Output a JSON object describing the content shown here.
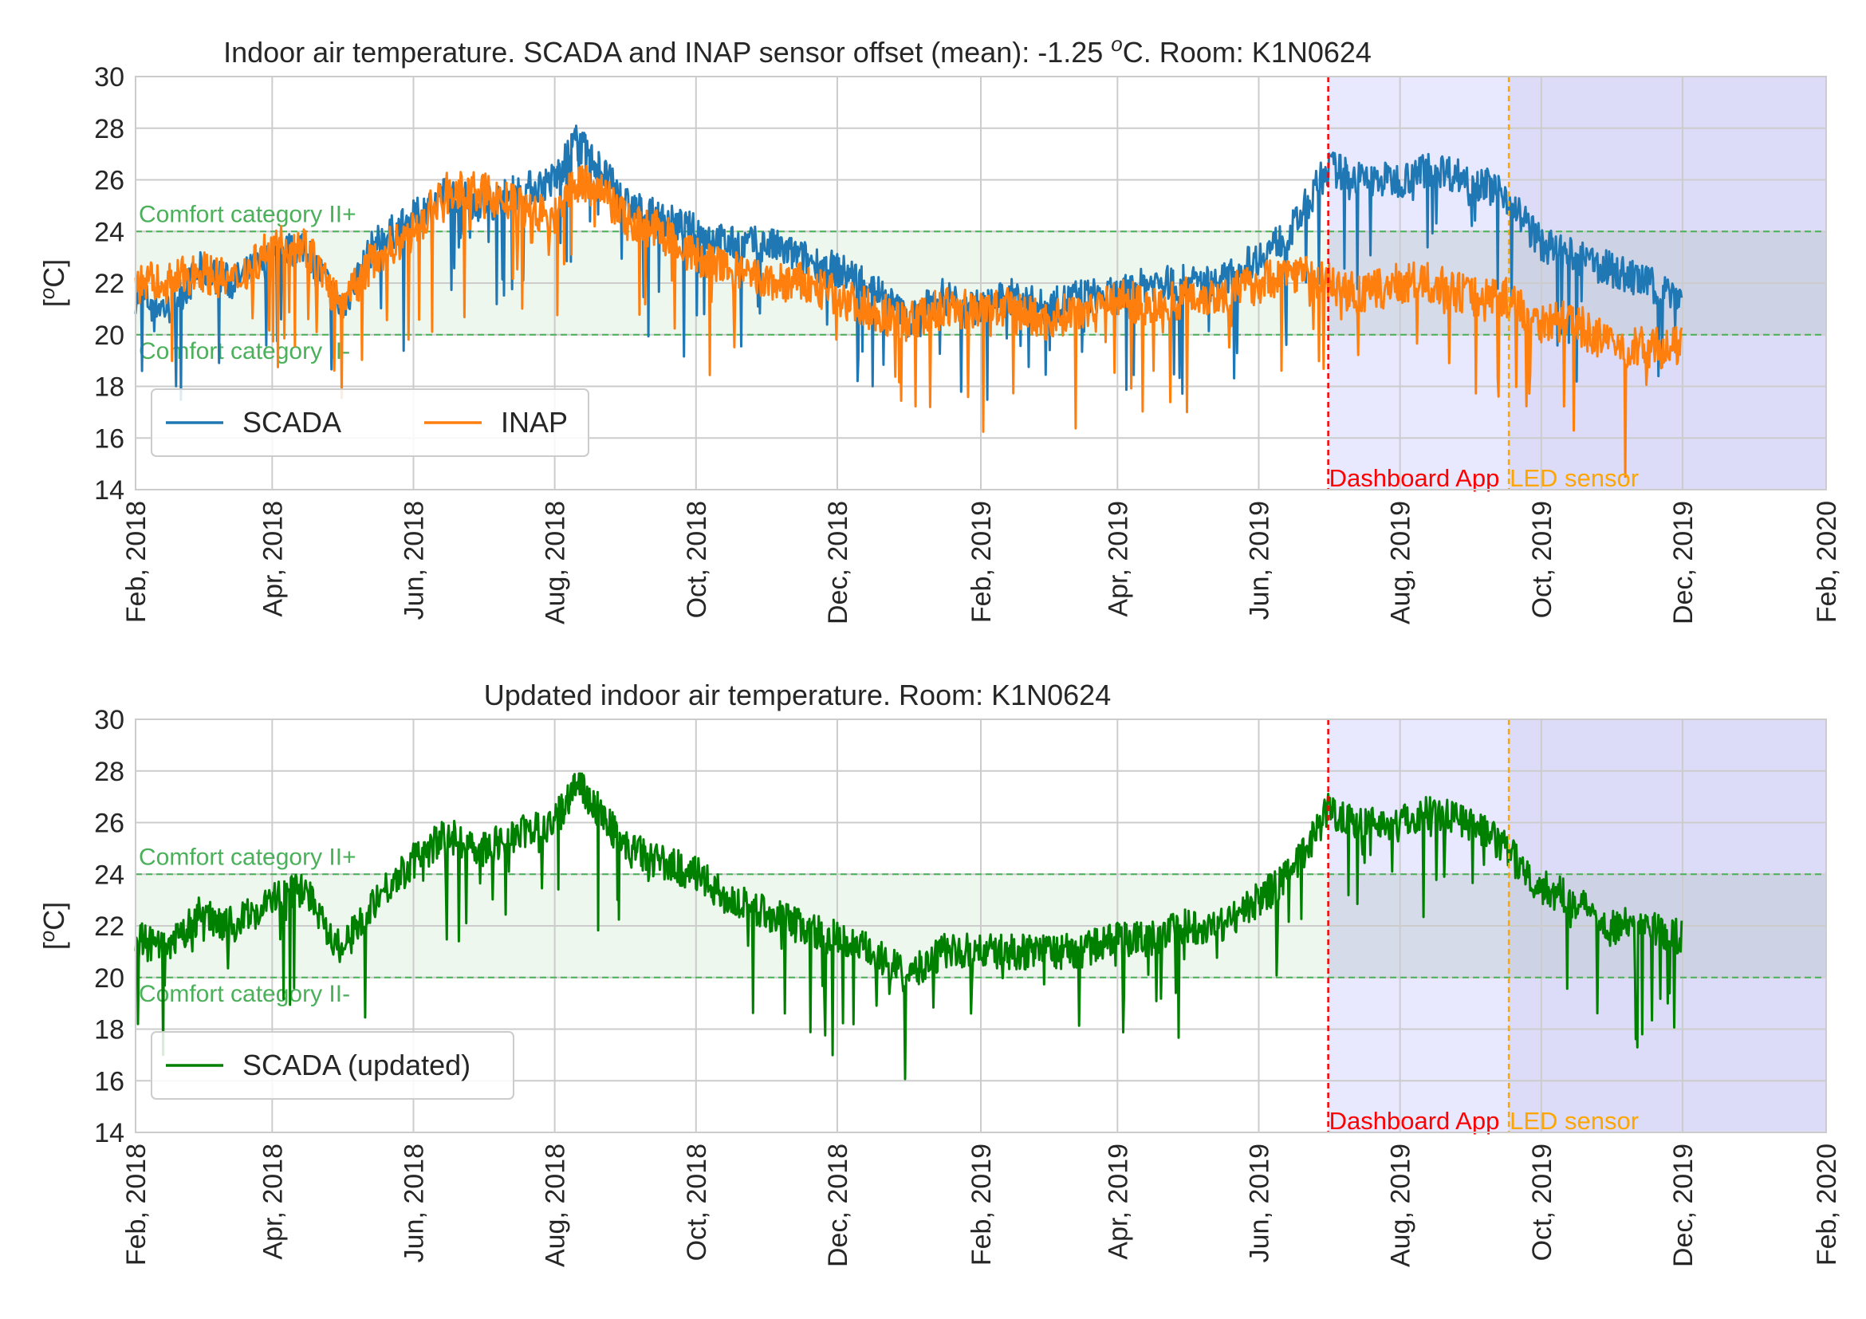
{
  "chart_data": [
    {
      "type": "line",
      "title": "Indoor air temperature. SCADA and INAP sensor offset (mean): -1.25 °C. Room: K1N0624",
      "title_parts": {
        "before": "Indoor air temperature. SCADA and INAP sensor offset (mean): -1.25 ",
        "sup": "o",
        "after": "C. Room: K1N0624"
      },
      "xlabel": "",
      "ylabel": "[oC]",
      "ylabel_parts": {
        "before": "[",
        "sup": "o",
        "after": "C]"
      },
      "xlim": [
        "2018-02-01",
        "2020-02-01"
      ],
      "ylim": [
        14,
        30
      ],
      "x_ticks": [
        "Feb, 2018",
        "Apr, 2018",
        "Jun, 2018",
        "Aug, 2018",
        "Oct, 2018",
        "Dec, 2018",
        "Feb, 2019",
        "Apr, 2019",
        "Jun, 2019",
        "Aug, 2019",
        "Oct, 2019",
        "Dec, 2019",
        "Feb, 2020"
      ],
      "y_ticks": [
        "14",
        "16",
        "18",
        "20",
        "22",
        "24",
        "26",
        "28",
        "30"
      ],
      "grid": true,
      "legend_position": "lower-left",
      "legend_columns": 2,
      "comfort_band": {
        "upper": 24,
        "lower": 20,
        "upper_label": "Comfort category II+",
        "lower_label": "Comfort category II-",
        "color": "#4bb05a"
      },
      "events": [
        {
          "date": "2019-07-01",
          "label": "Dashboard App",
          "color": "#ff0000"
        },
        {
          "date": "2019-09-17",
          "label": "LED sensor",
          "color": "#ffa500"
        }
      ],
      "shaded_periods": [
        {
          "start": "2019-07-01",
          "end": "2020-02-01",
          "color": "#e8e8ff"
        },
        {
          "start": "2019-09-17",
          "end": "2020-02-01",
          "color": "#dcdcf8"
        }
      ],
      "series": [
        {
          "name": "SCADA",
          "color": "#1f77b4",
          "x": [
            "2018-02-01",
            "2018-02-15",
            "2018-03-01",
            "2018-03-15",
            "2018-04-01",
            "2018-04-15",
            "2018-05-01",
            "2018-05-15",
            "2018-06-01",
            "2018-06-15",
            "2018-07-01",
            "2018-07-15",
            "2018-08-01",
            "2018-08-10",
            "2018-08-20",
            "2018-09-01",
            "2018-09-15",
            "2018-10-01",
            "2018-10-15",
            "2018-11-01",
            "2018-11-15",
            "2018-12-01",
            "2018-12-15",
            "2019-01-01",
            "2019-01-15",
            "2019-02-01",
            "2019-02-15",
            "2019-03-01",
            "2019-03-15",
            "2019-04-01",
            "2019-04-15",
            "2019-05-01",
            "2019-05-15",
            "2019-06-01",
            "2019-06-15",
            "2019-07-01",
            "2019-07-15",
            "2019-08-01",
            "2019-08-15",
            "2019-09-01",
            "2019-09-15",
            "2019-10-01",
            "2019-10-15",
            "2019-11-01",
            "2019-11-15",
            "2019-12-01"
          ],
          "values": [
            21.5,
            21.0,
            22.5,
            22.0,
            23.0,
            23.5,
            21.0,
            23.5,
            24.5,
            25.5,
            25.0,
            25.5,
            26.0,
            27.5,
            26.5,
            25.0,
            24.5,
            24.0,
            23.5,
            23.5,
            23.0,
            22.5,
            22.0,
            20.5,
            21.5,
            21.0,
            21.5,
            21.0,
            21.5,
            21.5,
            22.0,
            22.0,
            22.0,
            23.0,
            24.0,
            26.5,
            26.0,
            26.0,
            26.5,
            26.0,
            25.5,
            23.5,
            23.0,
            22.5,
            22.0,
            21.5
          ]
        },
        {
          "name": "INAP",
          "color": "#ff7f0e",
          "x": [
            "2018-02-01",
            "2018-02-15",
            "2018-03-01",
            "2018-03-15",
            "2018-04-01",
            "2018-04-15",
            "2018-05-01",
            "2018-05-15",
            "2018-06-01",
            "2018-06-15",
            "2018-07-01",
            "2018-07-15",
            "2018-08-01",
            "2018-08-10",
            "2018-08-20",
            "2018-09-01",
            "2018-09-15",
            "2018-10-01",
            "2018-10-15",
            "2018-11-01",
            "2018-11-15",
            "2018-12-01",
            "2018-12-15",
            "2019-01-01",
            "2019-01-15",
            "2019-02-01",
            "2019-02-15",
            "2019-03-01",
            "2019-03-15",
            "2019-04-01",
            "2019-04-15",
            "2019-05-01",
            "2019-05-15",
            "2019-06-01",
            "2019-06-15",
            "2019-07-01",
            "2019-07-15",
            "2019-08-01",
            "2019-08-15",
            "2019-09-01",
            "2019-09-15",
            "2019-10-01",
            "2019-10-15",
            "2019-11-01",
            "2019-11-15",
            "2019-12-01"
          ],
          "values": [
            22.0,
            22.0,
            22.5,
            22.0,
            23.5,
            23.5,
            21.0,
            23.0,
            24.0,
            25.5,
            25.5,
            25.0,
            24.5,
            26.0,
            25.5,
            24.5,
            24.0,
            23.0,
            22.5,
            22.0,
            22.0,
            21.5,
            21.0,
            20.5,
            21.0,
            21.0,
            21.0,
            20.5,
            21.0,
            21.5,
            21.0,
            21.5,
            21.5,
            22.0,
            22.5,
            22.0,
            21.5,
            22.0,
            22.0,
            21.5,
            21.5,
            20.5,
            20.5,
            19.5,
            19.5,
            19.5
          ]
        }
      ]
    },
    {
      "type": "line",
      "title": "Updated indoor air temperature. Room: K1N0624",
      "xlabel": "",
      "ylabel": "[oC]",
      "ylabel_parts": {
        "before": "[",
        "sup": "o",
        "after": "C]"
      },
      "xlim": [
        "2018-02-01",
        "2020-02-01"
      ],
      "ylim": [
        14,
        30
      ],
      "x_ticks": [
        "Feb, 2018",
        "Apr, 2018",
        "Jun, 2018",
        "Aug, 2018",
        "Oct, 2018",
        "Dec, 2018",
        "Feb, 2019",
        "Apr, 2019",
        "Jun, 2019",
        "Aug, 2019",
        "Oct, 2019",
        "Dec, 2019",
        "Feb, 2020"
      ],
      "y_ticks": [
        "14",
        "16",
        "18",
        "20",
        "22",
        "24",
        "26",
        "28",
        "30"
      ],
      "grid": true,
      "legend_position": "lower-left",
      "legend_columns": 1,
      "comfort_band": {
        "upper": 24,
        "lower": 20,
        "upper_label": "Comfort category II+",
        "lower_label": "Comfort category II-",
        "color": "#4bb05a"
      },
      "events": [
        {
          "date": "2019-07-01",
          "label": "Dashboard App",
          "color": "#ff0000"
        },
        {
          "date": "2019-09-17",
          "label": "LED sensor",
          "color": "#ffa500"
        }
      ],
      "shaded_periods": [
        {
          "start": "2019-07-01",
          "end": "2020-02-01",
          "color": "#e8e8ff"
        },
        {
          "start": "2019-09-17",
          "end": "2020-02-01",
          "color": "#dcdcf8"
        }
      ],
      "series": [
        {
          "name": "SCADA (updated)",
          "color": "#008000",
          "x": [
            "2018-02-01",
            "2018-02-15",
            "2018-03-01",
            "2018-03-15",
            "2018-04-01",
            "2018-04-15",
            "2018-05-01",
            "2018-05-15",
            "2018-06-01",
            "2018-06-15",
            "2018-07-01",
            "2018-07-15",
            "2018-08-01",
            "2018-08-10",
            "2018-08-20",
            "2018-09-01",
            "2018-09-15",
            "2018-10-01",
            "2018-10-15",
            "2018-11-01",
            "2018-11-15",
            "2018-12-01",
            "2018-12-15",
            "2019-01-01",
            "2019-01-15",
            "2019-02-01",
            "2019-02-15",
            "2019-03-01",
            "2019-03-15",
            "2019-04-01",
            "2019-04-15",
            "2019-05-01",
            "2019-05-15",
            "2019-06-01",
            "2019-06-15",
            "2019-07-01",
            "2019-07-15",
            "2019-08-01",
            "2019-08-15",
            "2019-09-01",
            "2019-09-15",
            "2019-10-01",
            "2019-10-15",
            "2019-11-01",
            "2019-11-15",
            "2019-12-01"
          ],
          "values": [
            21.5,
            21.0,
            22.5,
            22.0,
            23.0,
            23.5,
            21.0,
            23.0,
            24.5,
            25.5,
            25.0,
            25.5,
            26.0,
            27.5,
            26.5,
            25.0,
            24.5,
            24.0,
            23.0,
            22.5,
            22.0,
            21.5,
            21.0,
            20.0,
            21.0,
            21.0,
            21.0,
            21.0,
            21.0,
            21.5,
            21.5,
            22.0,
            22.0,
            23.0,
            24.0,
            26.5,
            26.0,
            26.0,
            26.5,
            26.0,
            25.0,
            23.5,
            23.0,
            22.0,
            22.0,
            21.5
          ]
        }
      ]
    }
  ]
}
